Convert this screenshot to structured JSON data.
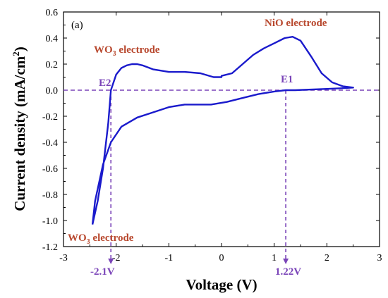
{
  "chart_data": {
    "type": "line",
    "panel_label": "(a)",
    "xlabel": "Voltage (V)",
    "ylabel": "Current density (mA/cm",
    "ylabel_sup": "2",
    "ylabel_end": ")",
    "xlim": [
      -3,
      3
    ],
    "ylim": [
      -1.2,
      0.6
    ],
    "x_ticks": [
      -3,
      -2,
      -1,
      0,
      1,
      2,
      3
    ],
    "x_tick_labels": [
      "-3",
      "-2",
      "-1",
      "0",
      "1",
      "2",
      "3"
    ],
    "y_ticks": [
      -1.2,
      -1.0,
      -0.8,
      -0.6,
      -0.4,
      -0.2,
      0.0,
      0.2,
      0.4,
      0.6
    ],
    "y_tick_labels": [
      "-1.2",
      "-1.0",
      "-0.8",
      "-0.6",
      "-0.4",
      "-0.2",
      "0.0",
      "0.2",
      "0.4",
      "0.6"
    ],
    "series": [
      {
        "color": "#1a1acc",
        "x": [
          -2.45,
          -2.35,
          -2.25,
          -2.15,
          -2.1,
          -2.0,
          -1.9,
          -1.8,
          -1.7,
          -1.6,
          -1.5,
          -1.3,
          -1.0,
          -0.7,
          -0.4,
          -0.15,
          0.0,
          0.0,
          0.2,
          0.4,
          0.6,
          0.8,
          1.0,
          1.2,
          1.35,
          1.5,
          1.7,
          1.9,
          2.1,
          2.3,
          2.5,
          2.3,
          2.0,
          1.7,
          1.4,
          1.22,
          1.0,
          0.7,
          0.4,
          0.1,
          -0.2,
          -0.4,
          -0.7,
          -1.0,
          -1.3,
          -1.6,
          -1.9,
          -2.1,
          -2.25,
          -2.4,
          -2.45
        ],
        "y": [
          -1.03,
          -0.85,
          -0.6,
          -0.25,
          0.0,
          0.12,
          0.17,
          0.19,
          0.2,
          0.2,
          0.19,
          0.16,
          0.14,
          0.14,
          0.13,
          0.1,
          0.1,
          0.11,
          0.13,
          0.2,
          0.27,
          0.32,
          0.36,
          0.4,
          0.41,
          0.38,
          0.26,
          0.13,
          0.06,
          0.03,
          0.02,
          0.015,
          0.01,
          0.005,
          0.0,
          0.0,
          -0.01,
          -0.03,
          -0.06,
          -0.09,
          -0.11,
          -0.11,
          -0.11,
          -0.13,
          -0.17,
          -0.21,
          -0.28,
          -0.4,
          -0.57,
          -0.85,
          -1.03
        ]
      }
    ],
    "reference_lines": {
      "zero_line_y": 0.0,
      "e2_x": -2.1,
      "e1_x": 1.22,
      "color": "#7a44b8"
    },
    "annotations": {
      "nio": "NiO electrode",
      "wo3_top_prefix": "WO",
      "wo3_top_sub": "3",
      "wo3_top_suffix": " electrode",
      "wo3_bottom_prefix": "WO",
      "wo3_bottom_sub": "3",
      "wo3_bottom_suffix": " electrode",
      "e1": "E1",
      "e2": "E2",
      "v_e2": "-2.1V",
      "v_e1": "1.22V",
      "label_color": "#b8482e"
    }
  }
}
